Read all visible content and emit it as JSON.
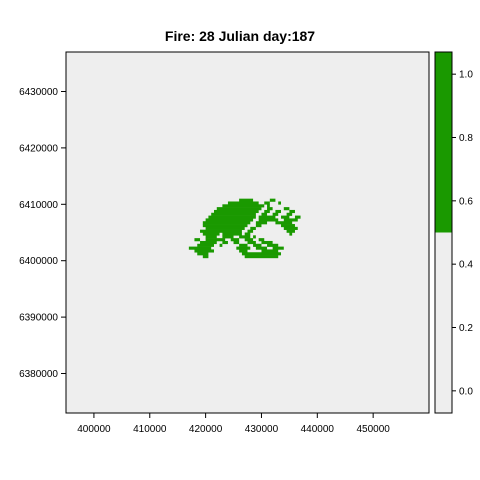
{
  "chart_data": {
    "type": "heatmap",
    "title": "Fire: 28   Julian day:187",
    "xlabel": "",
    "ylabel": "",
    "xlim": [
      395000,
      460000
    ],
    "ylim": [
      6373000,
      6437000
    ],
    "x_ticks": [
      400000,
      410000,
      420000,
      430000,
      440000,
      450000
    ],
    "x_tick_labels": [
      "400000",
      "410000",
      "420000",
      "430000",
      "440000",
      "450000"
    ],
    "y_ticks": [
      6380000,
      6390000,
      6400000,
      6410000,
      6420000,
      6430000
    ],
    "y_tick_labels": [
      "6380000",
      "6390000",
      "6400000",
      "6410000",
      "6420000",
      "6430000"
    ],
    "grid": false,
    "cell_size": 500,
    "background_value": 0,
    "burned_value": 1,
    "colors": {
      "background": "#eeeeee",
      "burned": "#1a9900",
      "axes": "#000000"
    },
    "burned_cells_rows": [
      {
        "y": 6410750,
        "x_ranges": [
          [
            426000,
            428500
          ],
          [
            431500,
            432500
          ]
        ]
      },
      {
        "y": 6410250,
        "x_ranges": [
          [
            424000,
            429500
          ],
          [
            430500,
            431500
          ],
          [
            433000,
            433500
          ]
        ]
      },
      {
        "y": 6409750,
        "x_ranges": [
          [
            423000,
            430500
          ],
          [
            431000,
            431500
          ]
        ]
      },
      {
        "y": 6409250,
        "x_ranges": [
          [
            422000,
            430000
          ],
          [
            431000,
            432000
          ],
          [
            434000,
            435000
          ]
        ]
      },
      {
        "y": 6408750,
        "x_ranges": [
          [
            421500,
            429500
          ],
          [
            430500,
            431500
          ],
          [
            432500,
            433500
          ],
          [
            435000,
            436000
          ]
        ]
      },
      {
        "y": 6408250,
        "x_ranges": [
          [
            421000,
            429000
          ],
          [
            430000,
            431000
          ],
          [
            432000,
            433000
          ],
          [
            434500,
            435500
          ]
        ]
      },
      {
        "y": 6407750,
        "x_ranges": [
          [
            420500,
            429000
          ],
          [
            429500,
            432500
          ],
          [
            433500,
            435000
          ],
          [
            436000,
            437000
          ]
        ]
      },
      {
        "y": 6407250,
        "x_ranges": [
          [
            420000,
            428500
          ],
          [
            429500,
            433000
          ],
          [
            434000,
            436500
          ]
        ]
      },
      {
        "y": 6406750,
        "x_ranges": [
          [
            419500,
            428000
          ],
          [
            429000,
            431000
          ],
          [
            432500,
            435500
          ]
        ]
      },
      {
        "y": 6406250,
        "x_ranges": [
          [
            419500,
            427500
          ],
          [
            429000,
            430000
          ],
          [
            433500,
            436000
          ]
        ]
      },
      {
        "y": 6405750,
        "x_ranges": [
          [
            420000,
            427000
          ],
          [
            428000,
            429000
          ],
          [
            434000,
            436500
          ]
        ]
      },
      {
        "y": 6405250,
        "x_ranges": [
          [
            419000,
            426500
          ],
          [
            427500,
            428500
          ],
          [
            434500,
            436000
          ]
        ]
      },
      {
        "y": 6404750,
        "x_ranges": [
          [
            419500,
            422500
          ],
          [
            423000,
            426500
          ],
          [
            427000,
            428000
          ],
          [
            435000,
            435500
          ]
        ]
      },
      {
        "y": 6404250,
        "x_ranges": [
          [
            420000,
            422000
          ],
          [
            423000,
            425000
          ],
          [
            426000,
            428000
          ],
          [
            428500,
            429000
          ]
        ]
      },
      {
        "y": 6403750,
        "x_ranges": [
          [
            418000,
            419000
          ],
          [
            420000,
            423500
          ],
          [
            424500,
            426000
          ],
          [
            427000,
            428500
          ],
          [
            429500,
            430500
          ]
        ]
      },
      {
        "y": 6403250,
        "x_ranges": [
          [
            419000,
            422000
          ],
          [
            423000,
            424000
          ],
          [
            425000,
            426000
          ],
          [
            427500,
            429000
          ],
          [
            430000,
            432000
          ]
        ]
      },
      {
        "y": 6402750,
        "x_ranges": [
          [
            418500,
            421500
          ],
          [
            422500,
            423000
          ],
          [
            426000,
            427500
          ],
          [
            428500,
            430000
          ],
          [
            431000,
            433000
          ]
        ]
      },
      {
        "y": 6402250,
        "x_ranges": [
          [
            417000,
            421000
          ],
          [
            425500,
            428000
          ],
          [
            429000,
            431000
          ],
          [
            432000,
            434000
          ]
        ]
      },
      {
        "y": 6401750,
        "x_ranges": [
          [
            418000,
            421500
          ],
          [
            426000,
            427500
          ],
          [
            430000,
            433000
          ]
        ]
      },
      {
        "y": 6401250,
        "x_ranges": [
          [
            418500,
            420500
          ],
          [
            426500,
            433500
          ]
        ]
      },
      {
        "y": 6400750,
        "x_ranges": [
          [
            419500,
            420500
          ],
          [
            427000,
            433000
          ]
        ]
      }
    ],
    "legend": {
      "type": "colorbar",
      "placement": "right",
      "range": [
        -0.07,
        1.07
      ],
      "split_value": 0.5,
      "ticks": [
        0.0,
        0.2,
        0.4,
        0.6,
        0.8,
        1.0
      ],
      "tick_labels": [
        "0.0",
        "0.2",
        "0.4",
        "0.6",
        "0.8",
        "1.0"
      ]
    }
  }
}
